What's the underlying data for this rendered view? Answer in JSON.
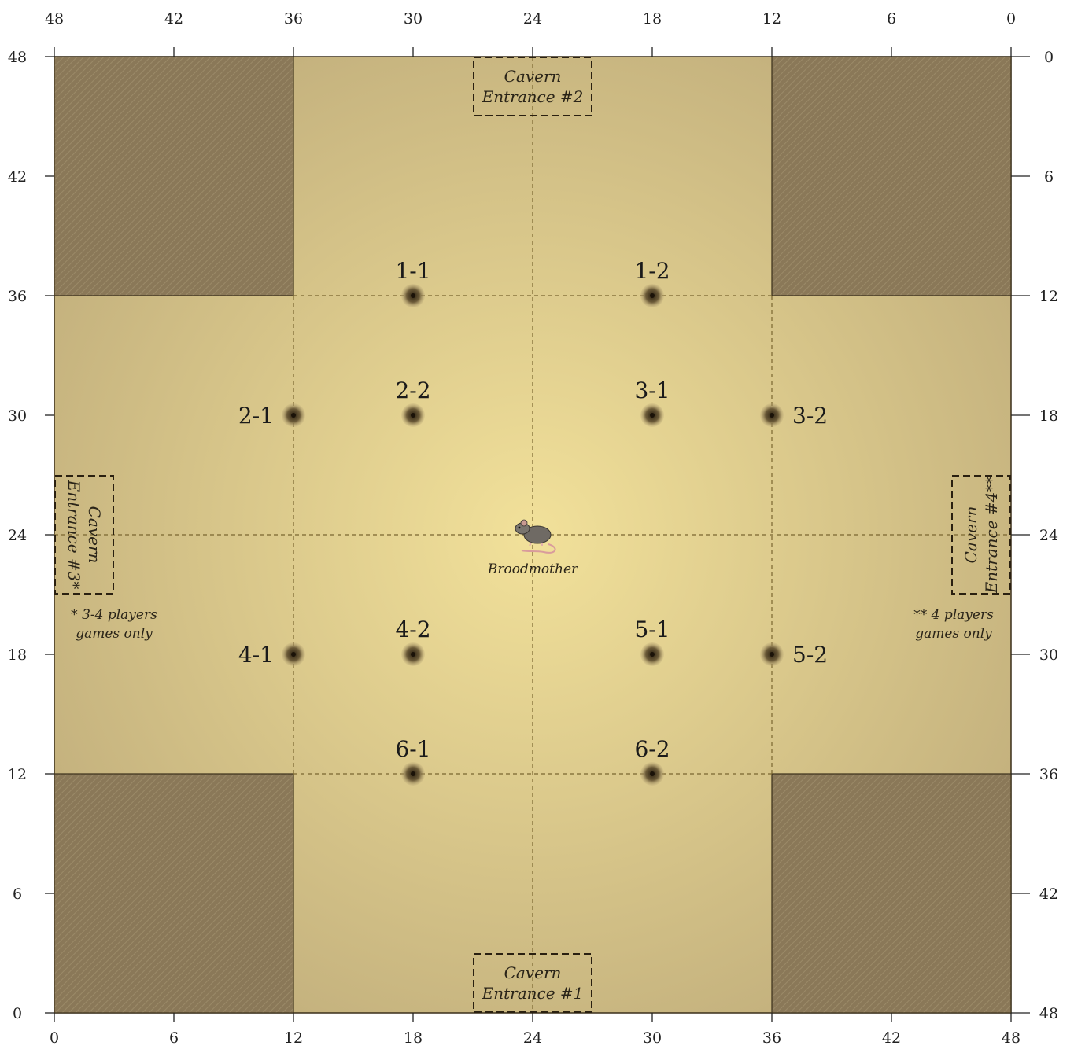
{
  "map": {
    "grid_max": 48,
    "tick_step": 6,
    "axes": {
      "bottom": [
        "0",
        "6",
        "12",
        "18",
        "24",
        "30",
        "36",
        "42",
        "48"
      ],
      "top": [
        "48",
        "42",
        "36",
        "30",
        "24",
        "18",
        "12",
        "6",
        "0"
      ],
      "left": [
        "48",
        "42",
        "36",
        "30",
        "24",
        "18",
        "12",
        "6",
        "0"
      ],
      "right": [
        "0",
        "6",
        "12",
        "18",
        "24",
        "30",
        "36",
        "42",
        "48"
      ]
    },
    "colors": {
      "center": "#f2e19a",
      "edge": "#b9a677",
      "blocked": "#8a7858",
      "line": "#7a6630"
    },
    "blocked_regions": [
      {
        "name": "top-left",
        "x": [
          0,
          12
        ],
        "y": [
          36,
          48
        ]
      },
      {
        "name": "top-right",
        "x": [
          36,
          48
        ],
        "y": [
          36,
          48
        ]
      },
      {
        "name": "bottom-left",
        "x": [
          0,
          12
        ],
        "y": [
          0,
          12
        ]
      },
      {
        "name": "bottom-right",
        "x": [
          36,
          48
        ],
        "y": [
          0,
          12
        ]
      }
    ],
    "markers": [
      {
        "id": "1-1",
        "label": "1-1",
        "x": 18,
        "y": 36,
        "label_pos": "above"
      },
      {
        "id": "1-2",
        "label": "1-2",
        "x": 30,
        "y": 36,
        "label_pos": "above"
      },
      {
        "id": "2-1",
        "label": "2-1",
        "x": 12,
        "y": 30,
        "label_pos": "left"
      },
      {
        "id": "2-2",
        "label": "2-2",
        "x": 18,
        "y": 30,
        "label_pos": "above"
      },
      {
        "id": "3-1",
        "label": "3-1",
        "x": 30,
        "y": 30,
        "label_pos": "above"
      },
      {
        "id": "3-2",
        "label": "3-2",
        "x": 36,
        "y": 30,
        "label_pos": "right"
      },
      {
        "id": "4-1",
        "label": "4-1",
        "x": 12,
        "y": 18,
        "label_pos": "left"
      },
      {
        "id": "4-2",
        "label": "4-2",
        "x": 18,
        "y": 18,
        "label_pos": "above"
      },
      {
        "id": "5-1",
        "label": "5-1",
        "x": 30,
        "y": 18,
        "label_pos": "above"
      },
      {
        "id": "5-2",
        "label": "5-2",
        "x": 36,
        "y": 18,
        "label_pos": "right"
      },
      {
        "id": "6-1",
        "label": "6-1",
        "x": 18,
        "y": 12,
        "label_pos": "above"
      },
      {
        "id": "6-2",
        "label": "6-2",
        "x": 30,
        "y": 12,
        "label_pos": "above"
      }
    ],
    "entrances": [
      {
        "id": "entrance-1",
        "lines": [
          "Cavern",
          "Entrance #1"
        ],
        "side": "bottom",
        "x": [
          21,
          27
        ],
        "y": [
          0,
          3
        ]
      },
      {
        "id": "entrance-2",
        "lines": [
          "Cavern",
          "Entrance #2"
        ],
        "side": "top",
        "x": [
          21,
          27
        ],
        "y": [
          45,
          48
        ]
      },
      {
        "id": "entrance-3",
        "lines": [
          "Cavern",
          "Entrance #3*"
        ],
        "side": "left",
        "x": [
          0,
          3
        ],
        "y": [
          21,
          27
        ]
      },
      {
        "id": "entrance-4",
        "lines": [
          "Cavern",
          "Entrance #4**"
        ],
        "side": "right",
        "x": [
          45,
          48
        ],
        "y": [
          21,
          27
        ]
      }
    ],
    "notes": {
      "left": [
        "* 3-4 players",
        "games only"
      ],
      "right": [
        "** 4 players",
        "games only"
      ]
    },
    "boss": {
      "label": "Broodmother",
      "x": 24,
      "y": 24,
      "icon": "rat-icon"
    }
  }
}
